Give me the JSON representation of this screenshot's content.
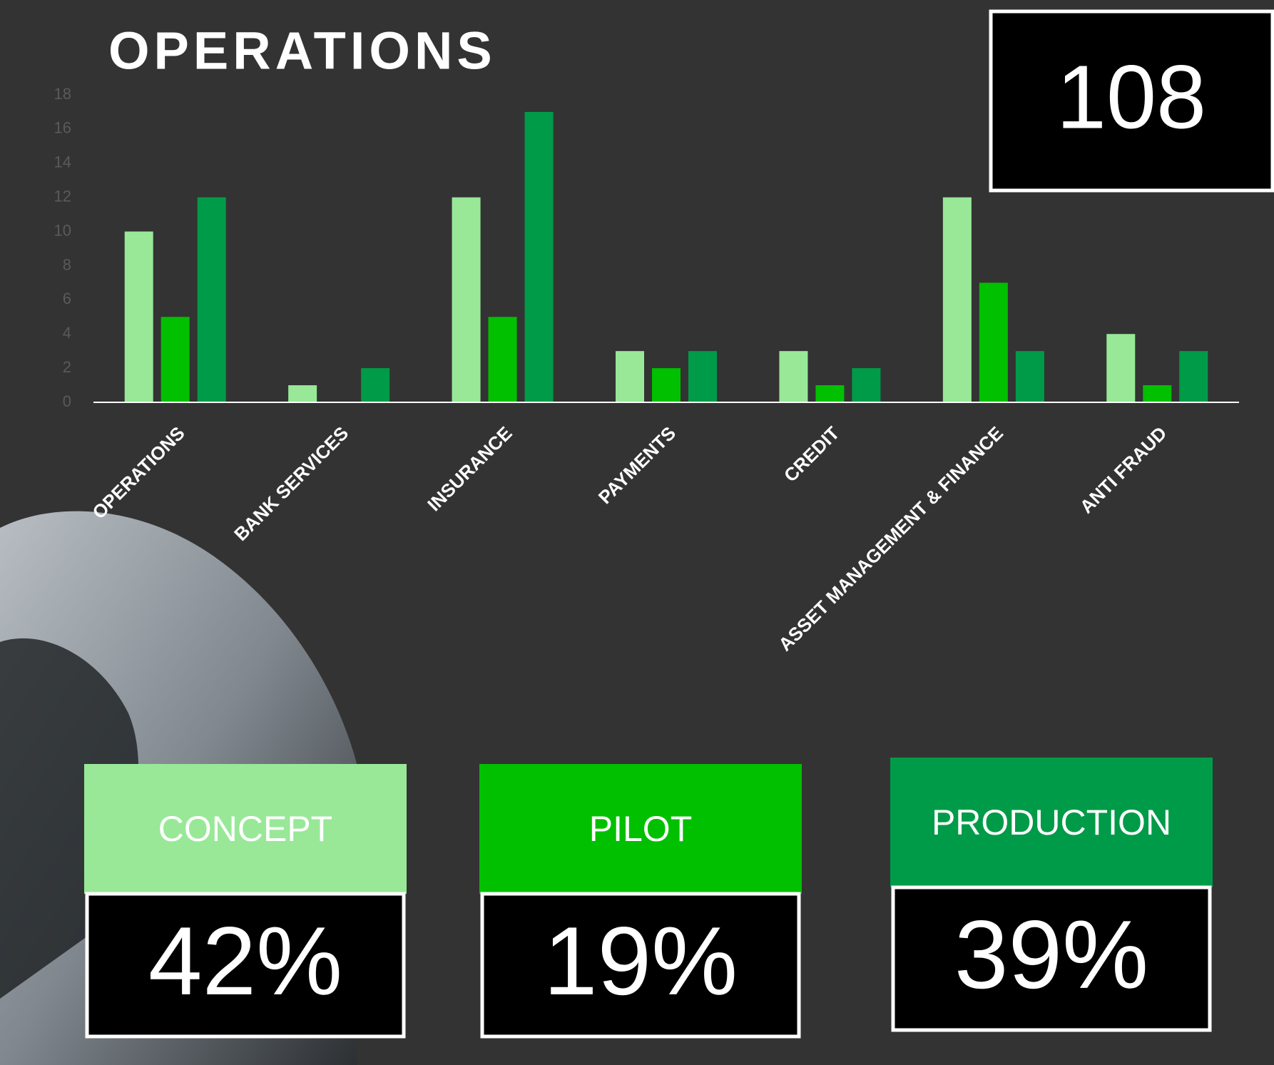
{
  "chart_data": {
    "type": "bar",
    "title": "OPERATIONS",
    "categories": [
      "OPERATIONS",
      "BANK SERVICES",
      "INSURANCE",
      "PAYMENTS",
      "CREDIT",
      "ASSET MANAGEMENT & FINANCE",
      "ANTI FRAUD"
    ],
    "series": [
      {
        "name": "CONCEPT",
        "color": "#98e898",
        "values": [
          10,
          1,
          12,
          3,
          3,
          12,
          4
        ]
      },
      {
        "name": "PILOT",
        "color": "#00c000",
        "values": [
          5,
          0,
          5,
          2,
          1,
          7,
          1
        ]
      },
      {
        "name": "PRODUCTION",
        "color": "#009b48",
        "values": [
          12,
          2,
          17,
          3,
          2,
          3,
          3
        ]
      }
    ],
    "ylim": [
      0,
      18
    ],
    "yticks": [
      0,
      2,
      4,
      6,
      8,
      10,
      12,
      14,
      16,
      18
    ],
    "grid": false
  },
  "total": 108,
  "shares": [
    "42%",
    "19%",
    "39%"
  ]
}
